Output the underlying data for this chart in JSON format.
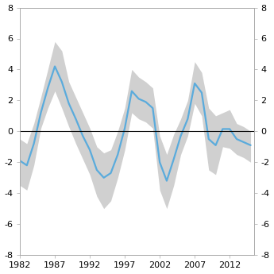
{
  "years": [
    1982,
    1983,
    1984,
    1985,
    1986,
    1987,
    1988,
    1989,
    1990,
    1991,
    1992,
    1993,
    1994,
    1995,
    1996,
    1997,
    1998,
    1999,
    2000,
    2001,
    2002,
    2003,
    2004,
    2005,
    2006,
    2007,
    2008,
    2009,
    2010,
    2011,
    2012,
    2013,
    2014,
    2015
  ],
  "line": [
    -1.9,
    -2.2,
    -0.8,
    1.2,
    2.8,
    4.2,
    3.2,
    1.8,
    0.8,
    -0.3,
    -1.2,
    -2.5,
    -3.0,
    -2.7,
    -1.5,
    0.2,
    2.6,
    2.1,
    1.9,
    1.5,
    -2.0,
    -3.2,
    -1.8,
    -0.3,
    0.8,
    3.1,
    2.5,
    -0.5,
    -0.9,
    0.15,
    0.15,
    -0.5,
    -0.7,
    -0.9
  ],
  "upper": [
    -0.5,
    -0.8,
    0.5,
    2.2,
    4.0,
    5.8,
    5.2,
    3.2,
    2.2,
    1.2,
    0.2,
    -1.0,
    -1.4,
    -1.2,
    0.0,
    1.5,
    4.0,
    3.5,
    3.2,
    2.8,
    -0.3,
    -1.5,
    -0.2,
    0.8,
    2.0,
    4.5,
    3.8,
    1.5,
    1.0,
    1.2,
    1.4,
    0.5,
    0.3,
    0.0
  ],
  "lower": [
    -3.5,
    -3.8,
    -2.2,
    0.2,
    1.5,
    2.6,
    1.5,
    0.3,
    -0.8,
    -1.8,
    -2.8,
    -4.2,
    -5.0,
    -4.5,
    -3.0,
    -1.2,
    1.2,
    0.8,
    0.6,
    0.2,
    -3.8,
    -5.0,
    -3.5,
    -1.5,
    -0.3,
    1.8,
    1.0,
    -2.5,
    -2.8,
    -1.0,
    -1.1,
    -1.5,
    -1.7,
    -2.0
  ],
  "line_color": "#5aabdc",
  "band_color": "#d0d0d0",
  "zero_line_color": "#000000",
  "ylim": [
    -8,
    8
  ],
  "yticks": [
    -8,
    -6,
    -4,
    -2,
    0,
    2,
    4,
    6,
    8
  ],
  "xticks": [
    1982,
    1987,
    1992,
    1997,
    2002,
    2007,
    2012
  ],
  "xlim": [
    1982,
    2015.5
  ],
  "background_color": "#ffffff",
  "spine_color": "#aaaaaa",
  "line_width": 1.6
}
